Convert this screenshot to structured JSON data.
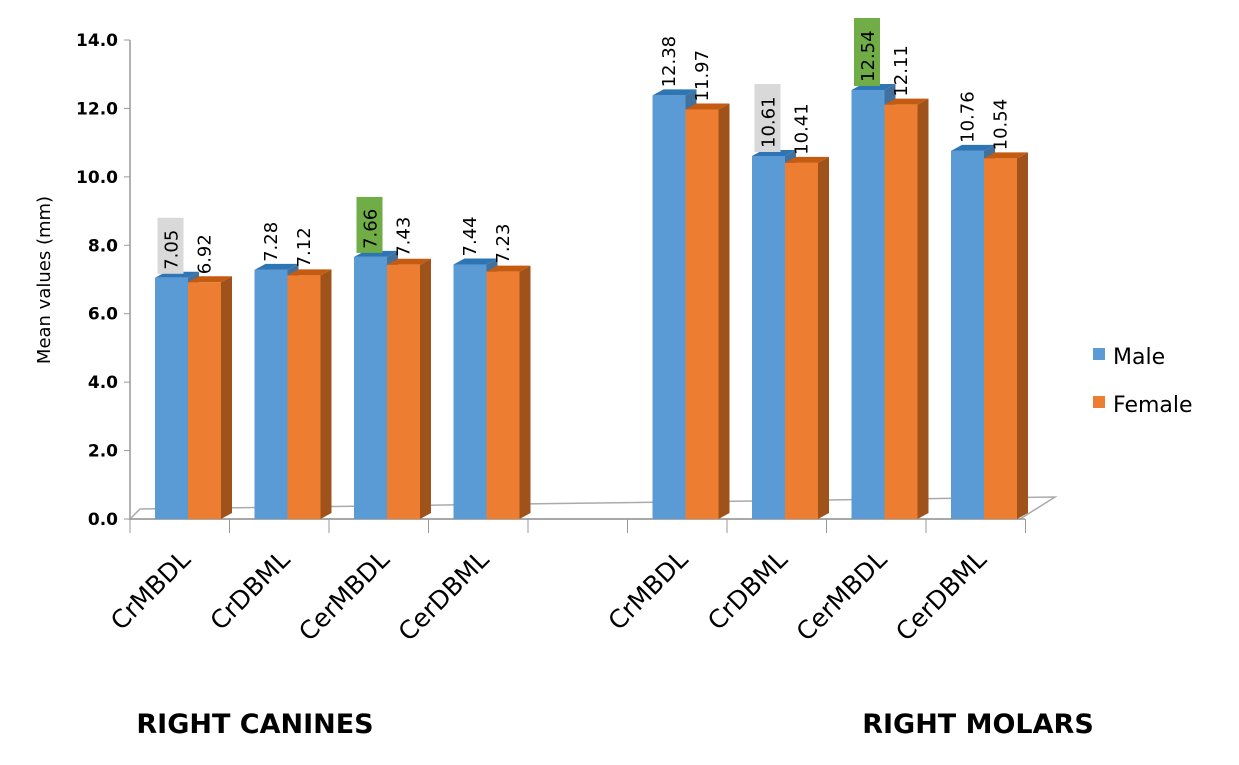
{
  "chart_data": {
    "type": "bar",
    "ylabel": "Mean values (mm)",
    "ylim": [
      0,
      14
    ],
    "yticks": [
      "0.0",
      "2.0",
      "4.0",
      "6.0",
      "8.0",
      "10.0",
      "12.0",
      "14.0"
    ],
    "grid": false,
    "legend_position": "right",
    "groups": [
      {
        "title": "RIGHT CANINES",
        "categories": [
          "CrMBDL",
          "CrDBML",
          "CerMBDL",
          "CerDBML"
        ]
      },
      {
        "title": "RIGHT MOLARS",
        "categories": [
          "CrMBDL",
          "CrDBML",
          "CerMBDL",
          "CerDBML"
        ]
      }
    ],
    "series": [
      {
        "name": "Male",
        "color": "#5B9BD5",
        "values": [
          [
            7.05,
            7.28,
            7.66,
            7.44
          ],
          [
            12.38,
            10.61,
            12.54,
            10.76
          ]
        ],
        "labels": [
          [
            "7.05",
            "7.28",
            "7.66",
            "7.44"
          ],
          [
            "12.38",
            "10.61",
            "12.54",
            "10.76"
          ]
        ]
      },
      {
        "name": "Female",
        "color": "#ED7D31",
        "values": [
          [
            6.92,
            7.12,
            7.43,
            7.23
          ],
          [
            11.97,
            10.41,
            12.11,
            10.54
          ]
        ],
        "labels": [
          [
            "6.92",
            "7.12",
            "7.43",
            "7.23"
          ],
          [
            "11.97",
            "10.41",
            "12.11",
            "10.54"
          ]
        ]
      }
    ],
    "highlights": [
      {
        "group": 0,
        "index": 0,
        "series": 0,
        "color": "#D9D9D9"
      },
      {
        "group": 0,
        "index": 2,
        "series": 0,
        "color": "#70AD47"
      },
      {
        "group": 1,
        "index": 1,
        "series": 0,
        "color": "#D9D9D9"
      },
      {
        "group": 1,
        "index": 2,
        "series": 0,
        "color": "#70AD47"
      }
    ]
  }
}
